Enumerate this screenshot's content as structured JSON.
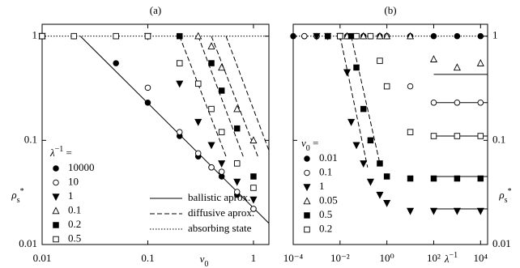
{
  "chart_data": [
    {
      "type": "scatter",
      "title": "(a)",
      "x_label": [
        "v",
        "0"
      ],
      "y_label": [
        "ρ",
        "s",
        "*"
      ],
      "y_axis_side": "left",
      "log_x": true,
      "log_y": true,
      "xlim": [
        0.01,
        1.4
      ],
      "ylim": [
        0.01,
        1.3
      ],
      "xticks": [
        0.01,
        0.1,
        1
      ],
      "yticks": [
        0.01,
        0.1,
        1
      ],
      "legend_title": [
        "λ",
        "−1",
        " ="
      ],
      "legend": "lower left",
      "series": [
        {
          "name": "10000",
          "marker": "circle",
          "filled": true,
          "color": "#000000",
          "x": [
            0.01,
            0.05,
            0.1,
            0.2,
            0.3,
            0.4,
            0.5,
            0.7,
            1
          ],
          "y": [
            1,
            0.55,
            0.23,
            0.11,
            0.07,
            0.055,
            0.045,
            0.03,
            0.022
          ]
        },
        {
          "name": "10",
          "marker": "circle",
          "filled": false,
          "color": "#000000",
          "x": [
            0.01,
            0.02,
            0.1,
            0.2,
            0.3,
            0.4,
            0.5,
            0.7,
            1
          ],
          "y": [
            1,
            1,
            0.32,
            0.12,
            0.075,
            0.055,
            0.05,
            0.032,
            0.022
          ]
        },
        {
          "name": "1",
          "marker": "triangle-down",
          "filled": true,
          "color": "#000000",
          "x": [
            0.01,
            0.1,
            0.2,
            0.3,
            0.4,
            0.5,
            0.7,
            1
          ],
          "y": [
            1,
            1,
            0.35,
            0.15,
            0.09,
            0.06,
            0.04,
            0.027
          ]
        },
        {
          "name": "0.1",
          "marker": "triangle-up",
          "filled": false,
          "color": "#000000",
          "x": [
            0.01,
            0.3,
            0.4,
            0.5,
            0.7,
            1
          ],
          "y": [
            1,
            1,
            0.8,
            0.5,
            0.2,
            0.1
          ]
        },
        {
          "name": "0.2",
          "marker": "square",
          "filled": true,
          "color": "#000000",
          "x": [
            0.01,
            0.2,
            0.4,
            0.5,
            0.7,
            1
          ],
          "y": [
            1,
            1,
            0.55,
            0.3,
            0.13,
            0.045
          ]
        },
        {
          "name": "0.5",
          "marker": "square",
          "filled": false,
          "color": "#000000",
          "x": [
            0.01,
            0.02,
            0.05,
            0.1,
            0.2,
            0.3,
            0.4,
            0.5,
            0.7,
            1
          ],
          "y": [
            1,
            1,
            1,
            1,
            0.55,
            0.35,
            0.2,
            0.12,
            0.06,
            0.035
          ]
        }
      ],
      "lines": [
        {
          "name": "ballistic aprox.",
          "style": "solid",
          "segments": [
            {
              "x": [
                0.023,
                1.4
              ],
              "y": [
                1,
                0.016
              ]
            }
          ]
        },
        {
          "name": "diffusive aprox.",
          "style": "dashed",
          "segments": [
            {
              "x": [
                0.2,
                0.55
              ],
              "y": [
                1,
                0.07
              ]
            },
            {
              "x": [
                0.3,
                0.8
              ],
              "y": [
                1,
                0.07
              ]
            },
            {
              "x": [
                0.4,
                1.1
              ],
              "y": [
                1,
                0.07
              ]
            },
            {
              "x": [
                0.55,
                1.4
              ],
              "y": [
                1,
                0.08
              ]
            }
          ]
        },
        {
          "name": "absorbing state",
          "style": "dotted",
          "segments": [
            {
              "x": [
                0.01,
                1.4
              ],
              "y": [
                1,
                1
              ]
            }
          ]
        }
      ]
    },
    {
      "type": "scatter",
      "title": "(b)",
      "x_label": [
        "λ",
        "−1"
      ],
      "y_label": [
        "ρ",
        "s",
        "*"
      ],
      "y_axis_side": "right",
      "log_x": true,
      "log_y": true,
      "xlim": [
        0.0001,
        20000
      ],
      "ylim": [
        0.01,
        1.3
      ],
      "xticks": [
        {
          "value": 0.0001,
          "label": "10⁻⁴"
        },
        {
          "value": 0.01,
          "label": "10⁻²"
        },
        {
          "value": 1,
          "label": "10⁰"
        },
        {
          "value": 100,
          "label": "10²"
        },
        {
          "value": 10000,
          "label": "10⁴"
        }
      ],
      "yticks": [
        0.01,
        0.1,
        1
      ],
      "legend_title": [
        "v",
        "0",
        " ="
      ],
      "legend": "lower left",
      "series": [
        {
          "name": "0.01",
          "marker": "circle",
          "filled": true,
          "color": "#000000",
          "x": [
            0.0001,
            0.0003,
            0.001,
            0.003,
            0.01,
            0.02,
            0.05,
            0.1,
            0.2,
            0.5,
            1,
            10,
            100,
            1000,
            10000
          ],
          "y": [
            1,
            1,
            1,
            1,
            1,
            1,
            1,
            1,
            1,
            1,
            1,
            1,
            1,
            1,
            1
          ]
        },
        {
          "name": "0.1",
          "marker": "circle",
          "filled": false,
          "color": "#000000",
          "x": [
            0.0003,
            0.001,
            0.003,
            0.01,
            0.05,
            0.2,
            1,
            10,
            100,
            1000,
            10000
          ],
          "y": [
            1,
            1,
            1,
            1,
            1,
            1,
            1,
            0.33,
            0.23,
            0.23,
            0.23
          ]
        },
        {
          "name": "1",
          "marker": "triangle-down",
          "filled": true,
          "color": "#000000",
          "x": [
            0.001,
            0.003,
            0.01,
            0.02,
            0.03,
            0.05,
            0.1,
            0.2,
            0.5,
            1,
            10,
            100,
            1000,
            10000
          ],
          "y": [
            1,
            1,
            1,
            0.45,
            0.15,
            0.09,
            0.06,
            0.04,
            0.03,
            0.025,
            0.021,
            0.021,
            0.021,
            0.021
          ]
        },
        {
          "name": "0.05",
          "marker": "triangle-up",
          "filled": false,
          "color": "#000000",
          "x": [
            0.02,
            0.1,
            0.5,
            1,
            10,
            100,
            1000,
            10000
          ],
          "y": [
            1,
            1,
            1,
            1,
            1,
            0.6,
            0.5,
            0.55
          ]
        },
        {
          "name": "0.5",
          "marker": "square",
          "filled": true,
          "color": "#000000",
          "x": [
            0.003,
            0.01,
            0.03,
            0.05,
            0.1,
            0.2,
            0.5,
            1,
            10,
            100,
            1000,
            10000
          ],
          "y": [
            1,
            1,
            1,
            0.5,
            0.2,
            0.1,
            0.06,
            0.045,
            0.043,
            0.043,
            0.043,
            0.043
          ]
        },
        {
          "name": "0.2",
          "marker": "square",
          "filled": false,
          "color": "#000000",
          "x": [
            0.01,
            0.05,
            0.2,
            0.5,
            1,
            10,
            100,
            1000,
            10000
          ],
          "y": [
            1,
            1,
            1,
            0.58,
            0.33,
            0.12,
            0.11,
            0.11,
            0.11
          ]
        }
      ],
      "lines": [
        {
          "style": "solid",
          "segments": [
            {
              "x": [
                100,
                20000
              ],
              "y": [
                0.43,
                0.43
              ]
            },
            {
              "x": [
                100,
                20000
              ],
              "y": [
                0.23,
                0.23
              ]
            },
            {
              "x": [
                100,
                20000
              ],
              "y": [
                0.11,
                0.11
              ]
            },
            {
              "x": [
                100,
                20000
              ],
              "y": [
                0.045,
                0.045
              ]
            },
            {
              "x": [
                100,
                20000
              ],
              "y": [
                0.022,
                0.022
              ]
            }
          ]
        },
        {
          "style": "dashed",
          "segments": [
            {
              "x": [
                0.01,
                0.15
              ],
              "y": [
                1,
                0.055
              ]
            },
            {
              "x": [
                0.03,
                0.5
              ],
              "y": [
                1,
                0.06
              ]
            }
          ]
        },
        {
          "style": "dotted",
          "segments": [
            {
              "x": [
                0.0001,
                20000
              ],
              "y": [
                1,
                1
              ]
            }
          ]
        }
      ]
    }
  ]
}
